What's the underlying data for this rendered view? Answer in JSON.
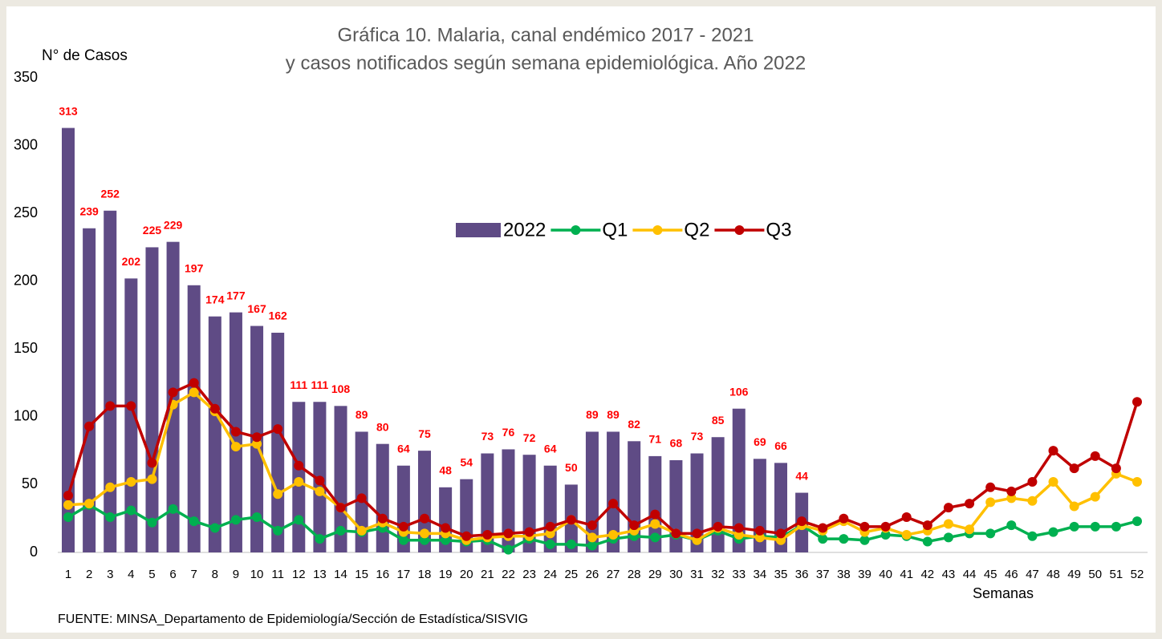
{
  "chart_data": {
    "type": "bar_line",
    "title": [
      "Gráfica 10. Malaria, canal endémico 2017 - 2021",
      "y casos notificados según semana epidemiológica. Año 2022"
    ],
    "ylabel": "N° de Casos",
    "xlabel": "Semanas",
    "source": "FUENTE: MINSA_Departamento de Epidemiología/Sección de Estadística/SISVIG",
    "categories": [
      1,
      2,
      3,
      4,
      5,
      6,
      7,
      8,
      9,
      10,
      11,
      12,
      13,
      14,
      15,
      16,
      17,
      18,
      19,
      20,
      21,
      22,
      23,
      24,
      25,
      26,
      27,
      28,
      29,
      30,
      31,
      32,
      33,
      34,
      35,
      36,
      37,
      38,
      39,
      40,
      41,
      42,
      43,
      44,
      45,
      46,
      47,
      48,
      49,
      50,
      51,
      52
    ],
    "ylim": [
      0,
      350
    ],
    "yticks": [
      0,
      50,
      100,
      150,
      200,
      250,
      300,
      350
    ],
    "grid": false,
    "legend": "center",
    "series": [
      {
        "name": "2022",
        "type": "bar",
        "color": "#5f4b85",
        "label_color": "#ff0000",
        "values": [
          313,
          239,
          252,
          202,
          225,
          229,
          197,
          174,
          177,
          167,
          162,
          111,
          111,
          108,
          89,
          80,
          64,
          75,
          48,
          54,
          73,
          76,
          72,
          64,
          50,
          89,
          89,
          82,
          71,
          68,
          73,
          85,
          106,
          69,
          66,
          44,
          null,
          null,
          null,
          null,
          null,
          null,
          null,
          null,
          null,
          null,
          null,
          null,
          null,
          null,
          null,
          null
        ]
      },
      {
        "name": "Q1",
        "type": "line",
        "color": "#00b050",
        "values": [
          26,
          35,
          26,
          31,
          22,
          32,
          23,
          18,
          24,
          26,
          16,
          24,
          10,
          16,
          15,
          18,
          9,
          9,
          9,
          8,
          9,
          2,
          10,
          6,
          6,
          5,
          10,
          12,
          11,
          13,
          9,
          16,
          10,
          12,
          11,
          20,
          10,
          10,
          9,
          13,
          12,
          8,
          11,
          14,
          14,
          20,
          12,
          15,
          19,
          19,
          19,
          23
        ]
      },
      {
        "name": "Q2",
        "type": "line",
        "color": "#ffc000",
        "values": [
          35,
          36,
          48,
          52,
          54,
          109,
          118,
          104,
          78,
          80,
          43,
          52,
          45,
          33,
          16,
          22,
          15,
          14,
          14,
          9,
          11,
          12,
          12,
          14,
          24,
          11,
          13,
          16,
          21,
          14,
          9,
          18,
          13,
          11,
          9,
          20,
          16,
          23,
          15,
          18,
          13,
          16,
          21,
          17,
          37,
          40,
          38,
          52,
          34,
          41,
          58,
          52
        ]
      },
      {
        "name": "Q3",
        "type": "line",
        "color": "#c00000",
        "values": [
          42,
          93,
          108,
          108,
          66,
          118,
          125,
          106,
          89,
          85,
          91,
          64,
          53,
          33,
          40,
          25,
          19,
          25,
          18,
          12,
          13,
          14,
          15,
          19,
          24,
          20,
          36,
          20,
          28,
          14,
          14,
          19,
          18,
          16,
          14,
          23,
          18,
          25,
          19,
          19,
          26,
          20,
          33,
          36,
          48,
          45,
          52,
          75,
          62,
          71,
          62,
          111
        ]
      }
    ]
  }
}
